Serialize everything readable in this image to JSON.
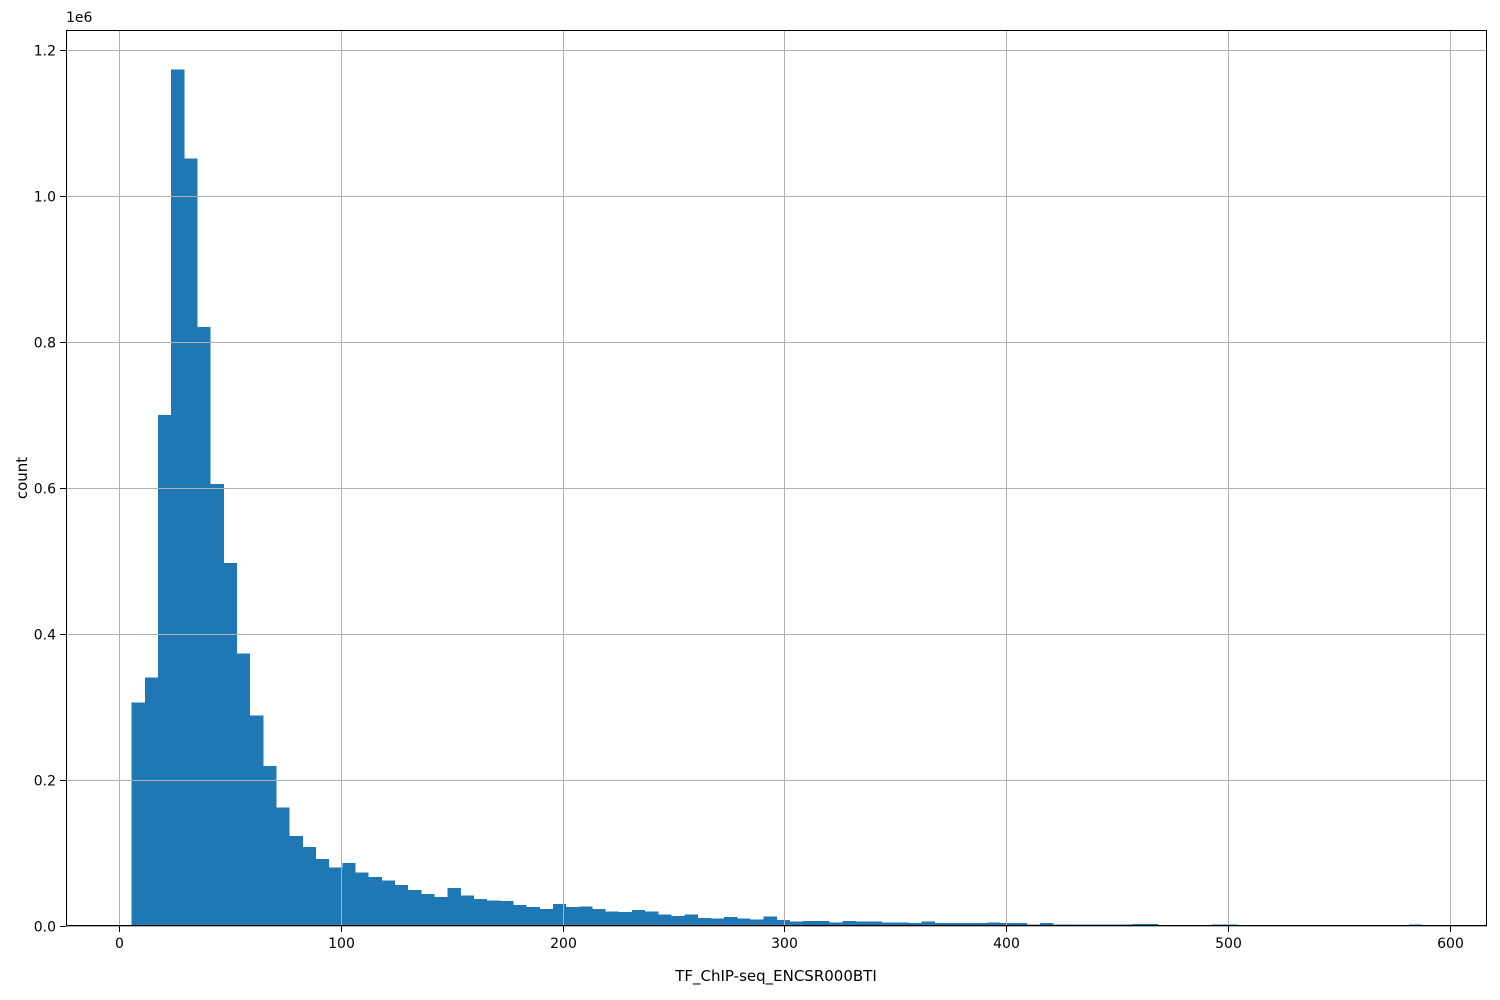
{
  "chart_data": {
    "type": "histogram",
    "title": "",
    "xlabel": "TF_ChIP-seq_ENCSR000BTI",
    "ylabel": "count",
    "y_offset_label": "1e6",
    "grid": true,
    "legend": false,
    "bar_color": "#1f77b4",
    "grid_color": "#b0b0b0",
    "spine_color": "#000000",
    "text_color": "#000000",
    "xlim": [
      -24.1,
      616.9
    ],
    "ylim": [
      0,
      1227000
    ],
    "bin_start": 5.5,
    "bin_width": 5.94,
    "counts": [
      306000,
      340000,
      700000,
      1173000,
      1051000,
      820000,
      605000,
      497000,
      373000,
      288000,
      219000,
      162000,
      123000,
      108000,
      92000,
      80000,
      86000,
      73000,
      67000,
      62000,
      56000,
      49000,
      44000,
      40000,
      52000,
      42000,
      37000,
      35000,
      34000,
      29000,
      26000,
      23000,
      30000,
      26000,
      27000,
      23000,
      20000,
      19000,
      22000,
      20000,
      16000,
      14000,
      16000,
      11000,
      10000,
      12000,
      10000,
      9000,
      13000,
      8000,
      6000,
      7000,
      7000,
      5000,
      7000,
      6000,
      6000,
      5000,
      5000,
      4000,
      6000,
      4000,
      4000,
      4000,
      4000,
      5000,
      4000,
      4000,
      2000,
      4000,
      2000,
      2000,
      2000,
      2000,
      2000,
      2000,
      3000,
      3000,
      1000,
      1000,
      1000,
      1000,
      2000,
      2000,
      0,
      0,
      0,
      0,
      0,
      0,
      0,
      0,
      0,
      0,
      0,
      0,
      0,
      2000,
      0
    ],
    "x_ticks": [
      {
        "value": 0,
        "label": "0"
      },
      {
        "value": 100,
        "label": "100"
      },
      {
        "value": 200,
        "label": "200"
      },
      {
        "value": 300,
        "label": "300"
      },
      {
        "value": 400,
        "label": "400"
      },
      {
        "value": 500,
        "label": "500"
      },
      {
        "value": 600,
        "label": "600"
      }
    ],
    "y_ticks": [
      {
        "value": 0,
        "label": "0.0"
      },
      {
        "value": 200000,
        "label": "0.2"
      },
      {
        "value": 400000,
        "label": "0.4"
      },
      {
        "value": 600000,
        "label": "0.6"
      },
      {
        "value": 800000,
        "label": "0.8"
      },
      {
        "value": 1000000,
        "label": "1.0"
      },
      {
        "value": 1200000,
        "label": "1.2"
      }
    ]
  }
}
